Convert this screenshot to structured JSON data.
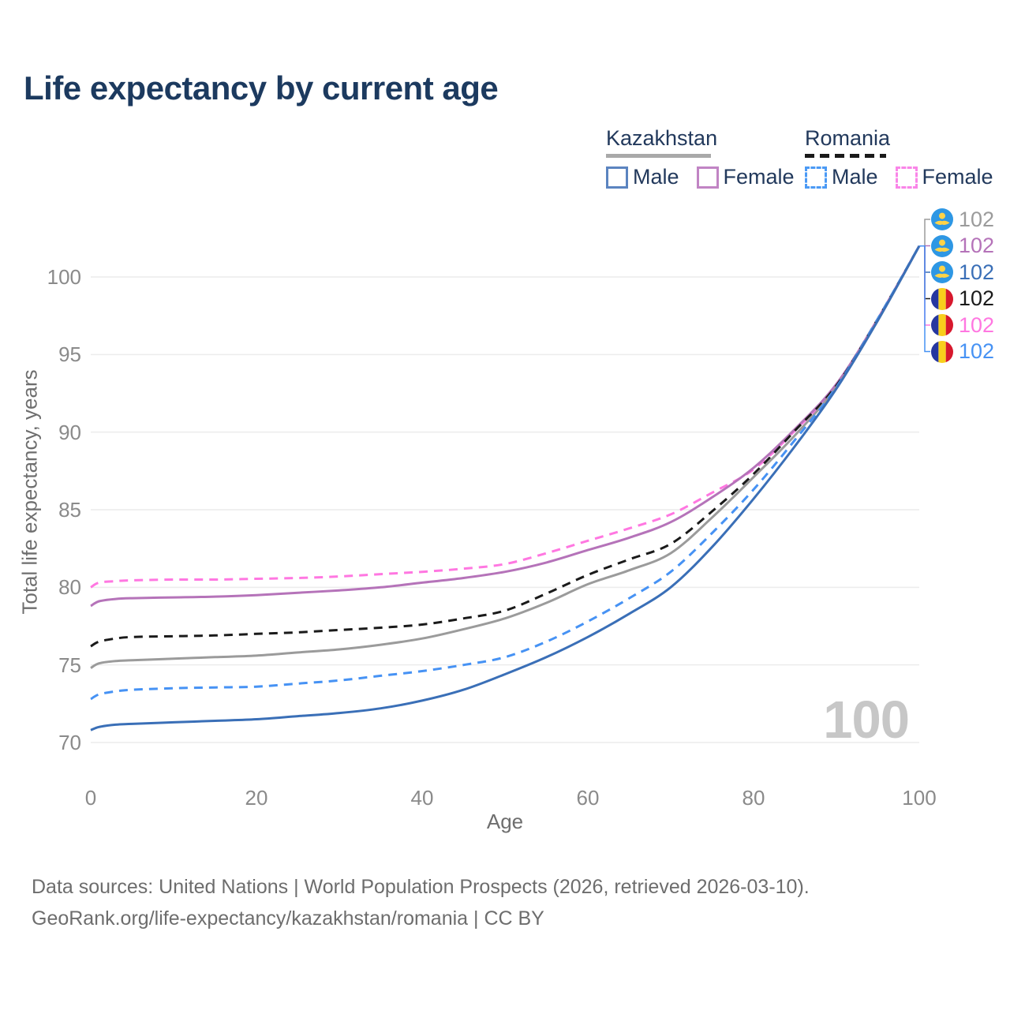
{
  "title": "Life expectancy by current age",
  "legend": {
    "groups": [
      {
        "country": "Kazakhstan",
        "line_style": "solid",
        "underline_color": "#a9a9a9",
        "items": [
          {
            "label": "Male",
            "color": "#3a6fb7"
          },
          {
            "label": "Female",
            "color": "#b573b9"
          }
        ]
      },
      {
        "country": "Romania",
        "line_style": "dashed",
        "underline_color": "#1a1a1a",
        "items": [
          {
            "label": "Male",
            "color": "#4692f4"
          },
          {
            "label": "Female",
            "color": "#ff77e1"
          }
        ]
      }
    ]
  },
  "axes": {
    "x": {
      "label": "Age",
      "ticks": [
        0,
        20,
        40,
        60,
        80,
        100
      ],
      "range": [
        0,
        100
      ]
    },
    "y": {
      "label": "Total life expectancy, years",
      "ticks": [
        70,
        75,
        80,
        85,
        90,
        95,
        100
      ],
      "range": [
        70,
        102
      ]
    }
  },
  "end_labels": [
    {
      "flag": "kz",
      "country": "Kazakhstan",
      "series": "Total",
      "value": "102",
      "color": "#9b9b9b"
    },
    {
      "flag": "kz",
      "country": "Kazakhstan",
      "series": "Female",
      "value": "102",
      "color": "#b573b9"
    },
    {
      "flag": "kz",
      "country": "Kazakhstan",
      "series": "Male",
      "value": "102",
      "color": "#3a6fb7"
    },
    {
      "flag": "ro",
      "country": "Romania",
      "series": "Total",
      "value": "102",
      "color": "#1a1a1a"
    },
    {
      "flag": "ro",
      "country": "Romania",
      "series": "Female",
      "value": "102",
      "color": "#ff77e1"
    },
    {
      "flag": "ro",
      "country": "Romania",
      "series": "Male",
      "value": "102",
      "color": "#4692f4"
    }
  ],
  "watermark": "100",
  "footer": {
    "line1": "Data sources: United Nations | World Population Prospects (2026, retrieved 2026-03-10).",
    "line2": "GeoRank.org/life-expectancy/kazakhstan/romania | CC BY"
  },
  "chart_data": {
    "type": "line",
    "title": "Life expectancy by current age",
    "xlabel": "Age",
    "ylabel": "Total life expectancy, years",
    "xlim": [
      0,
      100
    ],
    "ylim": [
      70,
      102
    ],
    "grid": "horizontal-only",
    "legend_position": "top-right",
    "x": [
      0,
      1,
      3,
      5,
      10,
      15,
      20,
      25,
      30,
      35,
      40,
      45,
      50,
      55,
      60,
      65,
      70,
      75,
      80,
      85,
      90,
      95,
      100
    ],
    "series": [
      {
        "name": "Romania Female",
        "color": "#ff77e1",
        "dash": "dashed",
        "values": [
          80.0,
          80.3,
          80.4,
          80.45,
          80.5,
          80.5,
          80.55,
          80.6,
          80.7,
          80.85,
          81.0,
          81.2,
          81.5,
          82.2,
          83.0,
          83.8,
          84.7,
          86.1,
          87.6,
          90.1,
          93.0,
          97.3,
          102
        ]
      },
      {
        "name": "Kazakhstan Female",
        "color": "#b573b9",
        "dash": "solid",
        "values": [
          78.8,
          79.1,
          79.25,
          79.3,
          79.35,
          79.4,
          79.5,
          79.65,
          79.8,
          80.0,
          80.3,
          80.6,
          81.0,
          81.6,
          82.4,
          83.2,
          84.2,
          85.8,
          87.7,
          90.2,
          93.1,
          97.3,
          102
        ]
      },
      {
        "name": "Romania Total",
        "color": "#1a1a1a",
        "dash": "dashed",
        "values": [
          76.2,
          76.5,
          76.7,
          76.8,
          76.85,
          76.9,
          77.0,
          77.1,
          77.25,
          77.4,
          77.6,
          78.0,
          78.5,
          79.6,
          80.8,
          81.8,
          82.8,
          84.9,
          87.3,
          90.1,
          93.0,
          97.3,
          102
        ]
      },
      {
        "name": "Kazakhstan Total",
        "color": "#9b9b9b",
        "dash": "solid",
        "values": [
          74.8,
          75.1,
          75.25,
          75.3,
          75.4,
          75.5,
          75.6,
          75.8,
          76.0,
          76.3,
          76.7,
          77.3,
          78.0,
          79.0,
          80.2,
          81.1,
          82.2,
          84.5,
          87.1,
          89.8,
          92.9,
          97.2,
          102
        ]
      },
      {
        "name": "Romania Male",
        "color": "#4692f4",
        "dash": "dashed",
        "values": [
          72.8,
          73.1,
          73.3,
          73.4,
          73.5,
          73.55,
          73.6,
          73.8,
          74.0,
          74.3,
          74.6,
          75.0,
          75.5,
          76.5,
          77.8,
          79.3,
          81.0,
          83.5,
          86.3,
          89.5,
          92.9,
          97.3,
          102
        ]
      },
      {
        "name": "Kazakhstan Male",
        "color": "#3a6fb7",
        "dash": "solid",
        "values": [
          70.8,
          71.0,
          71.15,
          71.2,
          71.3,
          71.4,
          71.5,
          71.7,
          71.9,
          72.2,
          72.7,
          73.4,
          74.4,
          75.5,
          76.8,
          78.3,
          80.0,
          82.6,
          85.7,
          89.1,
          92.8,
          97.2,
          102
        ]
      }
    ]
  }
}
